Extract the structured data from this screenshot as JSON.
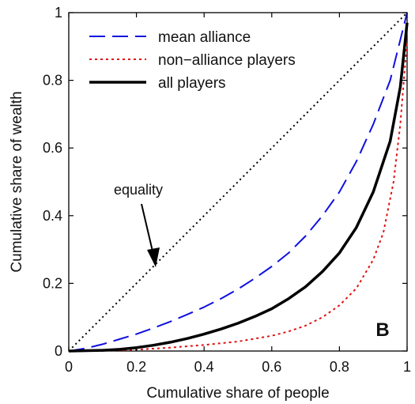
{
  "chart_data": {
    "type": "line",
    "xlabel": "Cumulative share of people",
    "ylabel": "Cumulative share of wealth",
    "xlim": [
      0,
      1
    ],
    "ylim": [
      0,
      1
    ],
    "x_ticks": [
      "0",
      "0.2",
      "0.4",
      "0.6",
      "0.8",
      "1"
    ],
    "y_ticks": [
      "0",
      "0.2",
      "0.4",
      "0.6",
      "0.8",
      "1"
    ],
    "grid": false,
    "legend_position": "top-left",
    "panel_label": "B",
    "annotation": {
      "text": "equality",
      "target": [
        0.25,
        0.25
      ]
    },
    "series": [
      {
        "name": "mean alliance",
        "color": "#1010e0",
        "style": "dashed",
        "x": [
          0,
          0.05,
          0.1,
          0.15,
          0.2,
          0.25,
          0.3,
          0.35,
          0.4,
          0.45,
          0.5,
          0.55,
          0.6,
          0.65,
          0.7,
          0.75,
          0.8,
          0.85,
          0.9,
          0.95,
          1.0
        ],
        "y": [
          0,
          0.008,
          0.02,
          0.035,
          0.05,
          0.068,
          0.087,
          0.108,
          0.13,
          0.155,
          0.183,
          0.215,
          0.25,
          0.29,
          0.34,
          0.4,
          0.47,
          0.56,
          0.67,
          0.8,
          1.0
        ]
      },
      {
        "name": "non−alliance players",
        "color": "#e01010",
        "style": "dotted",
        "x": [
          0,
          0.1,
          0.2,
          0.3,
          0.4,
          0.5,
          0.6,
          0.65,
          0.7,
          0.75,
          0.8,
          0.85,
          0.9,
          0.93,
          0.96,
          0.98,
          1.0
        ],
        "y": [
          0,
          0.001,
          0.004,
          0.01,
          0.018,
          0.028,
          0.045,
          0.058,
          0.075,
          0.1,
          0.135,
          0.185,
          0.27,
          0.35,
          0.5,
          0.67,
          0.92
        ]
      },
      {
        "name": "all players",
        "color": "#000000",
        "style": "solid",
        "x": [
          0,
          0.1,
          0.15,
          0.2,
          0.25,
          0.3,
          0.35,
          0.4,
          0.45,
          0.5,
          0.55,
          0.6,
          0.65,
          0.7,
          0.75,
          0.8,
          0.85,
          0.9,
          0.95,
          0.98,
          1.0
        ],
        "y": [
          0,
          0.002,
          0.005,
          0.01,
          0.017,
          0.026,
          0.037,
          0.05,
          0.065,
          0.082,
          0.102,
          0.125,
          0.155,
          0.19,
          0.235,
          0.29,
          0.365,
          0.47,
          0.62,
          0.78,
          0.97
        ]
      },
      {
        "name": "equality",
        "color": "#000000",
        "style": "dotted-equality",
        "x": [
          0,
          1
        ],
        "y": [
          0,
          1
        ]
      }
    ]
  }
}
